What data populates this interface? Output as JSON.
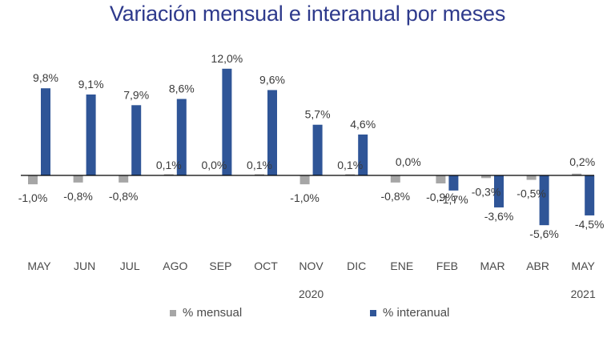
{
  "chart_data": {
    "type": "bar",
    "title": "Variación mensual e interanual por meses",
    "categories": [
      "MAY",
      "JUN",
      "JUL",
      "AGO",
      "SEP",
      "OCT",
      "NOV",
      "DIC",
      "ENE",
      "FEB",
      "MAR",
      "ABR",
      "MAY"
    ],
    "year_labels": [
      {
        "label": "2020",
        "category_index": 6
      },
      {
        "label": "2021",
        "category_index": 12
      }
    ],
    "series": [
      {
        "name": "% mensual",
        "color": "#a6a6a6",
        "values": [
          -1.0,
          -0.8,
          -0.8,
          0.1,
          0.0,
          0.1,
          -1.0,
          0.1,
          -0.8,
          -0.9,
          -0.3,
          -0.5,
          0.2
        ],
        "labels": [
          "-1,0%",
          "-0,8%",
          "-0,8%",
          "0,1%",
          "0,0%",
          "0,1%",
          "-1,0%",
          "0,1%",
          "-0,8%",
          "-0,9%",
          "-0,3%",
          "-0,5%",
          "0,2%"
        ]
      },
      {
        "name": "% interanual",
        "color": "#2f5597",
        "values": [
          9.8,
          9.1,
          7.9,
          8.6,
          12.0,
          9.6,
          5.7,
          4.6,
          0.0,
          -1.7,
          -3.6,
          -5.6,
          -4.5
        ],
        "labels": [
          "9,8%",
          "9,1%",
          "7,9%",
          "8,6%",
          "12,0%",
          "9,6%",
          "5,7%",
          "4,6%",
          "0,0%",
          "-1,7%",
          "-3,6%",
          "-5,6%",
          "-4,5%"
        ]
      }
    ],
    "ylim": [
      -9,
      13
    ],
    "xlabel": "",
    "ylabel": "",
    "grid": false,
    "legend_position": "bottom"
  },
  "colors": {
    "title": "#2e3a8c",
    "axis": "#000000"
  }
}
